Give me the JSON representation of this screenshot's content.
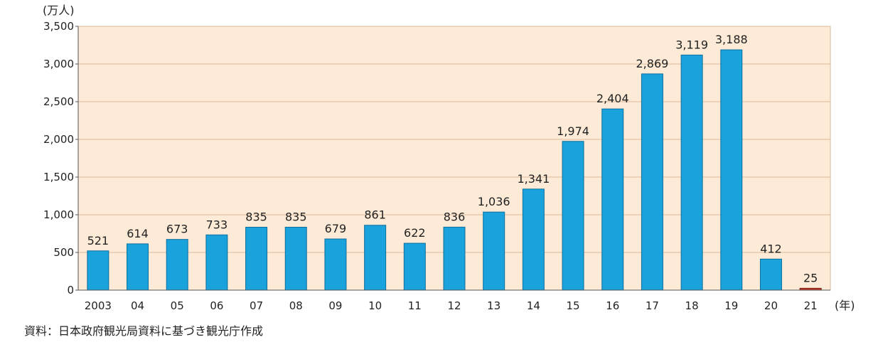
{
  "chart_data": {
    "type": "bar",
    "categories": [
      "2003",
      "04",
      "05",
      "06",
      "07",
      "08",
      "09",
      "10",
      "11",
      "12",
      "13",
      "14",
      "15",
      "16",
      "17",
      "18",
      "19",
      "20",
      "21"
    ],
    "values": [
      521,
      614,
      673,
      733,
      835,
      835,
      679,
      861,
      622,
      836,
      1036,
      1341,
      1974,
      2404,
      2869,
      3119,
      3188,
      412,
      25
    ],
    "data_labels": [
      "521",
      "614",
      "673",
      "733",
      "835",
      "835",
      "679",
      "861",
      "622",
      "836",
      "1,036",
      "1,341",
      "1,974",
      "2,404",
      "2,869",
      "3,119",
      "3,188",
      "412",
      "25"
    ],
    "ylim": [
      0,
      3500
    ],
    "yticks": [
      0,
      500,
      1000,
      1500,
      2000,
      2500,
      3000,
      3500
    ],
    "ytick_labels": [
      "0",
      "500",
      "1,000",
      "1,500",
      "2,000",
      "2,500",
      "3,000",
      "3,500"
    ],
    "ylabel": "(万人)",
    "xlabel": "(年)",
    "grid": true,
    "colors": {
      "plot_background": "#fdebd7",
      "bar": "#19a2db",
      "bar_edge": "#0e6f9e",
      "highlight_bar": "#c0392b",
      "gridline": "#d9b99a"
    },
    "highlight_index": 18
  },
  "source_note": "資料：日本政府観光局資料に基づき観光庁作成"
}
